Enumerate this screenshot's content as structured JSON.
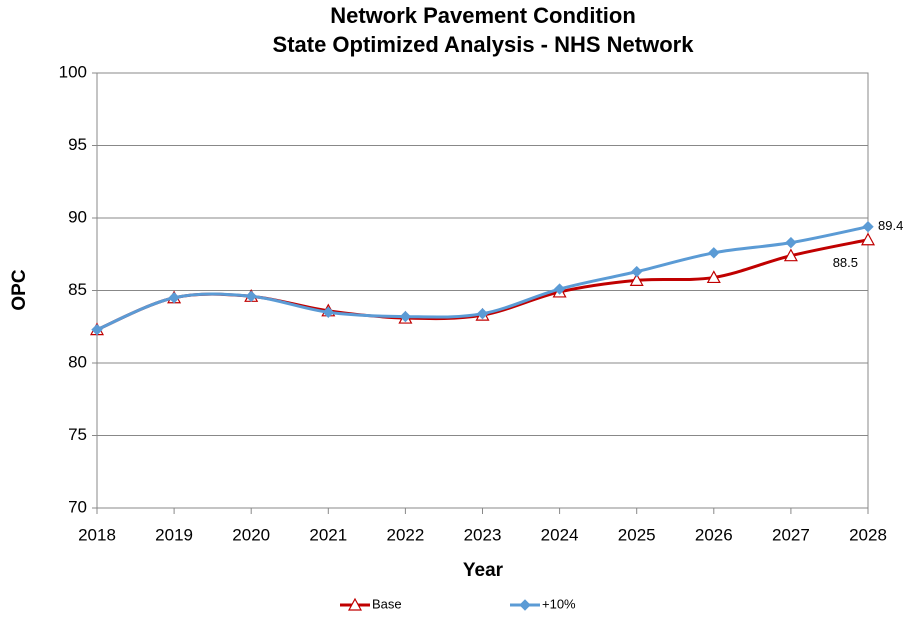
{
  "chart_data": {
    "type": "line",
    "title": "Network Pavement Condition",
    "subtitle": "State Optimized Analysis - NHS Network",
    "x_label": "Year",
    "y_label": "OPC",
    "x": [
      2018,
      2019,
      2020,
      2021,
      2022,
      2023,
      2024,
      2025,
      2026,
      2027,
      2028
    ],
    "xlim": [
      2018,
      2028
    ],
    "xticks": [
      2018,
      2019,
      2020,
      2021,
      2022,
      2023,
      2024,
      2025,
      2026,
      2027,
      2028
    ],
    "ylim": [
      70,
      100
    ],
    "yticks": [
      70,
      75,
      80,
      85,
      90,
      95,
      100
    ],
    "grid": true,
    "legend": "bottom",
    "series": [
      {
        "name": "Base",
        "color": "#c00000",
        "marker": "triangle",
        "values": [
          82.3,
          84.5,
          84.6,
          83.6,
          83.1,
          83.3,
          84.9,
          85.7,
          85.9,
          87.4,
          88.5
        ]
      },
      {
        "name": "+10%",
        "color": "#5b9bd5",
        "marker": "diamond",
        "values": [
          82.3,
          84.5,
          84.6,
          83.5,
          83.2,
          83.4,
          85.1,
          86.3,
          87.6,
          88.3,
          89.4
        ]
      }
    ]
  }
}
